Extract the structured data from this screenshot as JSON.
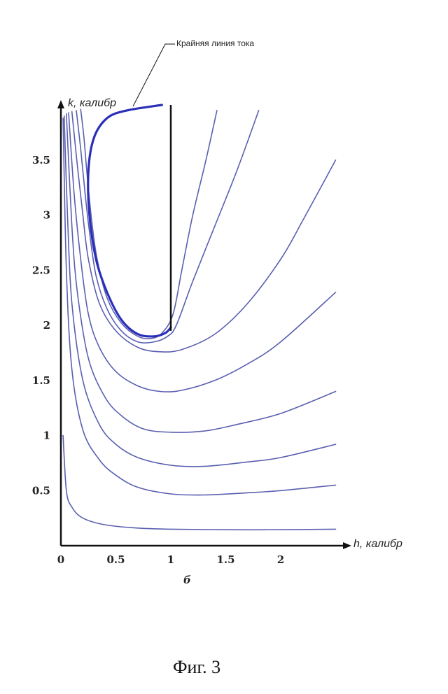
{
  "chart_data": {
    "type": "line",
    "xlabel": "h, калибр",
    "ylabel": "k, калибр",
    "xlim": [
      0,
      2.5
    ],
    "ylim": [
      0,
      4
    ],
    "x_ticks": [
      "0",
      "0.5",
      "1",
      "1.5",
      "2"
    ],
    "y_ticks": [
      "0.5",
      "1",
      "1.5",
      "2",
      "2.5",
      "3",
      "3.5"
    ],
    "x_tick_values": [
      0,
      0.5,
      1,
      1.5,
      2
    ],
    "y_tick_values": [
      0.5,
      1,
      1.5,
      2,
      2.5,
      3,
      3.5
    ],
    "annotation": "Крайняя линия тока",
    "sublabel": "б",
    "wall": {
      "x": [
        1,
        1
      ],
      "y": [
        1.95,
        4.0
      ]
    },
    "limit_streamline": {
      "x": [
        0.92,
        0.6,
        0.42,
        0.3,
        0.25,
        0.26,
        0.32,
        0.42,
        0.55,
        0.7,
        0.85,
        0.95,
        1.0
      ],
      "y": [
        4.0,
        3.95,
        3.88,
        3.7,
        3.4,
        3.0,
        2.6,
        2.3,
        2.05,
        1.92,
        1.9,
        1.93,
        1.98
      ]
    },
    "series": [
      {
        "x": [
          0.02,
          0.05,
          0.1,
          0.2,
          0.4,
          0.7,
          1.0,
          1.5,
          2.0,
          2.5
        ],
        "y": [
          1.0,
          0.5,
          0.35,
          0.25,
          0.19,
          0.16,
          0.15,
          0.145,
          0.145,
          0.15
        ]
      },
      {
        "x": [
          0.02,
          0.05,
          0.1,
          0.2,
          0.35,
          0.5,
          0.7,
          1.0,
          1.3,
          1.7,
          2.0,
          2.5
        ],
        "y": [
          3.88,
          2.5,
          1.6,
          1.05,
          0.78,
          0.64,
          0.53,
          0.47,
          0.46,
          0.48,
          0.5,
          0.55
        ]
      },
      {
        "x": [
          0.03,
          0.06,
          0.1,
          0.2,
          0.35,
          0.5,
          0.7,
          1.0,
          1.3,
          1.7,
          2.0,
          2.5
        ],
        "y": [
          3.9,
          3.0,
          2.2,
          1.5,
          1.1,
          0.92,
          0.8,
          0.73,
          0.72,
          0.76,
          0.8,
          0.92
        ]
      },
      {
        "x": [
          0.05,
          0.1,
          0.15,
          0.25,
          0.4,
          0.55,
          0.75,
          1.0,
          1.3,
          1.6,
          2.0,
          2.5
        ],
        "y": [
          3.92,
          2.9,
          2.3,
          1.7,
          1.35,
          1.18,
          1.06,
          1.03,
          1.04,
          1.1,
          1.2,
          1.4
        ]
      },
      {
        "x": [
          0.07,
          0.12,
          0.18,
          0.25,
          0.35,
          0.5,
          0.7,
          0.9,
          1.1,
          1.4,
          1.7,
          2.0,
          2.5
        ],
        "y": [
          3.93,
          3.2,
          2.6,
          2.1,
          1.8,
          1.58,
          1.45,
          1.4,
          1.41,
          1.5,
          1.65,
          1.85,
          2.3
        ]
      },
      {
        "x": [
          0.1,
          0.15,
          0.2,
          0.25,
          0.35,
          0.5,
          0.7,
          0.9,
          1.1,
          1.4,
          1.7,
          2.0,
          2.2,
          2.5
        ],
        "y": [
          3.94,
          3.45,
          3.0,
          2.6,
          2.2,
          1.95,
          1.8,
          1.76,
          1.78,
          1.92,
          2.2,
          2.6,
          2.95,
          3.5
        ]
      },
      {
        "x": [
          0.14,
          0.18,
          0.22,
          0.26,
          0.32,
          0.42,
          0.55,
          0.7,
          0.85,
          0.97,
          1.05,
          1.2,
          1.4,
          1.6,
          1.8
        ],
        "y": [
          3.95,
          3.6,
          3.2,
          2.85,
          2.45,
          2.15,
          1.95,
          1.85,
          1.85,
          1.9,
          2.0,
          2.4,
          2.9,
          3.4,
          3.95
        ]
      },
      {
        "x": [
          0.18,
          0.21,
          0.24,
          0.28,
          0.33,
          0.42,
          0.55,
          0.7,
          0.82,
          0.92,
          1.02,
          1.1,
          1.2,
          1.32,
          1.42
        ],
        "y": [
          3.96,
          3.7,
          3.35,
          2.95,
          2.6,
          2.25,
          2.02,
          1.9,
          1.88,
          1.93,
          2.1,
          2.5,
          3.0,
          3.5,
          3.95
        ]
      }
    ]
  },
  "caption": "Фиг. 3"
}
